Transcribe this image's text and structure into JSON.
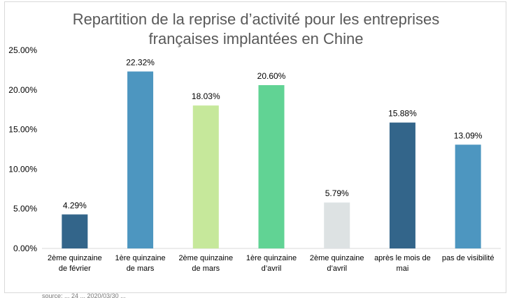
{
  "chart_data": {
    "type": "bar",
    "title_lines": [
      "Repartition de la reprise d’activité pour les entreprises",
      "françaises implantées en Chine"
    ],
    "categories": [
      [
        "2ème quinzaine",
        "de février"
      ],
      [
        "1ère quinzaine",
        "de mars"
      ],
      [
        "2ème quinzaine",
        "de mars"
      ],
      [
        "1ère quinzaine",
        "d’avril"
      ],
      [
        "2ème quinzaine",
        "d’avril"
      ],
      [
        "après le mois de",
        "mai"
      ],
      [
        "pas de visibilité"
      ]
    ],
    "values": [
      4.29,
      22.32,
      18.03,
      20.6,
      5.79,
      15.88,
      13.09
    ],
    "data_labels": [
      "4.29%",
      "22.32%",
      "18.03%",
      "20.60%",
      "5.79%",
      "15.88%",
      "13.09%"
    ],
    "colors": [
      "#33658a",
      "#4d96c0",
      "#c6e89b",
      "#61d394",
      "#dde2e3",
      "#33658a",
      "#4d96c0"
    ],
    "ylim": [
      0,
      25
    ],
    "yticks": [
      "0.00%",
      "5.00%",
      "10.00%",
      "15.00%",
      "20.00%",
      "25.00%"
    ],
    "xlabel": "",
    "ylabel": "",
    "grid": false
  },
  "footnote": "source: ... 24 ... 2020/03/30 ..."
}
